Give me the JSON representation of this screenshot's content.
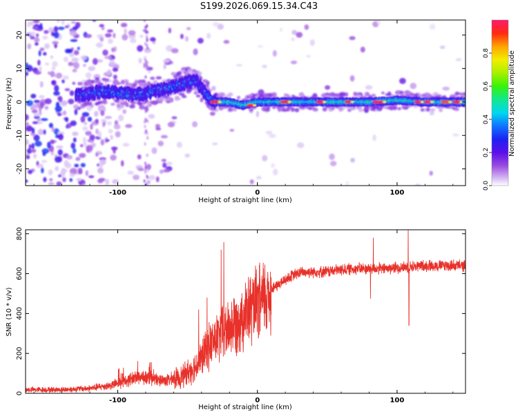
{
  "page": {
    "title": "S199.2026.069.15.34.C43"
  },
  "chart_data": [
    {
      "type": "heatmap",
      "title": "",
      "xlabel": "Height of straight line (km)",
      "ylabel": "Frequency (Hz)",
      "xlim": [
        -166,
        149
      ],
      "ylim": [
        -25,
        24.5
      ],
      "xticks": [
        -100,
        0,
        100
      ],
      "xtick_labels": [
        "-100",
        "0",
        "100"
      ],
      "yticks": [
        -20,
        -10,
        0,
        10,
        20
      ],
      "ytick_labels": [
        "-20",
        "-10",
        "0",
        "10",
        "20"
      ],
      "ridge": {
        "x": [
          -125,
          -115,
          -105,
          -95,
          -88,
          -80,
          -72,
          -64,
          -56,
          -50,
          -44,
          -40,
          -36,
          -33,
          -30,
          -25,
          -20,
          -15,
          -10,
          -5,
          0,
          10,
          20,
          40,
          60,
          80,
          100,
          120,
          148
        ],
        "y": [
          2,
          3,
          3,
          2.5,
          2,
          2.5,
          3.5,
          4,
          5,
          6,
          6.5,
          4,
          2,
          0.5,
          0,
          0,
          0,
          -0.5,
          -1,
          -0.5,
          0,
          0,
          0,
          0,
          0,
          0,
          0.5,
          0,
          0
        ]
      },
      "colorbar": {
        "label": "Normalized spectral amplitude",
        "range": [
          0,
          1
        ],
        "ticks": [
          0.0,
          0.2,
          0.4,
          0.6,
          0.8
        ],
        "tick_labels": [
          "0.0",
          "0.2",
          "0.4",
          "0.6",
          "0.8"
        ]
      }
    },
    {
      "type": "line",
      "title": "",
      "xlabel": "Height of straight line (km)",
      "ylabel": "SNR (10 * v/v)",
      "xlim": [
        -166,
        149
      ],
      "ylim": [
        0,
        820
      ],
      "xticks": [
        -100,
        0,
        100
      ],
      "xtick_labels": [
        "-100",
        "0",
        "100"
      ],
      "yticks": [
        0,
        200,
        400,
        600,
        800
      ],
      "ytick_labels": [
        "0",
        "200",
        "400",
        "600",
        "800"
      ],
      "color": "#e8312a",
      "series": [
        {
          "name": "SNR",
          "x": [
            -166,
            -140,
            -120,
            -105,
            -95,
            -85,
            -75,
            -65,
            -55,
            -45,
            -40,
            -35,
            -30,
            -25,
            -20,
            -15,
            -10,
            -5,
            0,
            5,
            10,
            15,
            20,
            25,
            30,
            40,
            50,
            60,
            70,
            80,
            90,
            100,
            110,
            120,
            130,
            140,
            149
          ],
          "values": [
            18,
            18,
            25,
            40,
            60,
            85,
            70,
            65,
            80,
            130,
            175,
            235,
            270,
            300,
            330,
            360,
            390,
            420,
            440,
            475,
            520,
            545,
            570,
            590,
            605,
            610,
            610,
            620,
            625,
            625,
            625,
            630,
            635,
            640,
            640,
            640,
            640
          ]
        }
      ],
      "spikes": [
        {
          "x": -24,
          "value": 758
        },
        {
          "x": -26,
          "value": 720
        },
        {
          "x": 83,
          "value": 780
        },
        {
          "x": 81,
          "value": 475
        },
        {
          "x": 108,
          "value": 820
        },
        {
          "x": 108.5,
          "value": 340
        },
        {
          "x": -42,
          "value": 420
        },
        {
          "x": -36,
          "value": 480
        }
      ]
    }
  ]
}
